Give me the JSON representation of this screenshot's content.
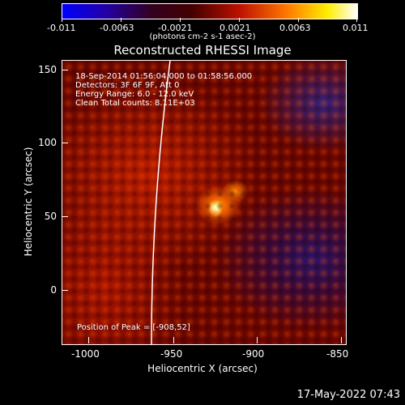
{
  "colorbar": {
    "tick_labels": [
      "-0.011",
      "-0.0063",
      "-0.0021",
      "0.0021",
      "0.0063",
      "0.011"
    ],
    "units_label": "(photons cm-2 s-1 asec-2)",
    "colors": [
      "#0000ff",
      "#2200aa",
      "#330022",
      "#440000",
      "#bb1100",
      "#ff7700",
      "#ffee00",
      "#ffffff"
    ]
  },
  "title": "Reconstructed RHESSI Image",
  "annotations": {
    "time_range": "18-Sep-2014 01:56:04.000 to 01:58:56.000",
    "detectors": "Detectors: 3F 6F 9F, Att 0",
    "energy": "Energy Range: 6.0 - 12.0 keV",
    "clean": "Clean    Total counts: 8.11E+03",
    "peak": "Position of Peak = [-908,52]"
  },
  "x_axis": {
    "title": "Heliocentric X (arcsec)",
    "ticks": [
      "-1000",
      "-950",
      "-900",
      "-850"
    ]
  },
  "y_axis": {
    "title": "Heliocentric Y (arcsec)",
    "ticks": [
      "150",
      "100",
      "50",
      "0"
    ]
  },
  "footer_timestamp": "17-May-2022 07:43"
}
